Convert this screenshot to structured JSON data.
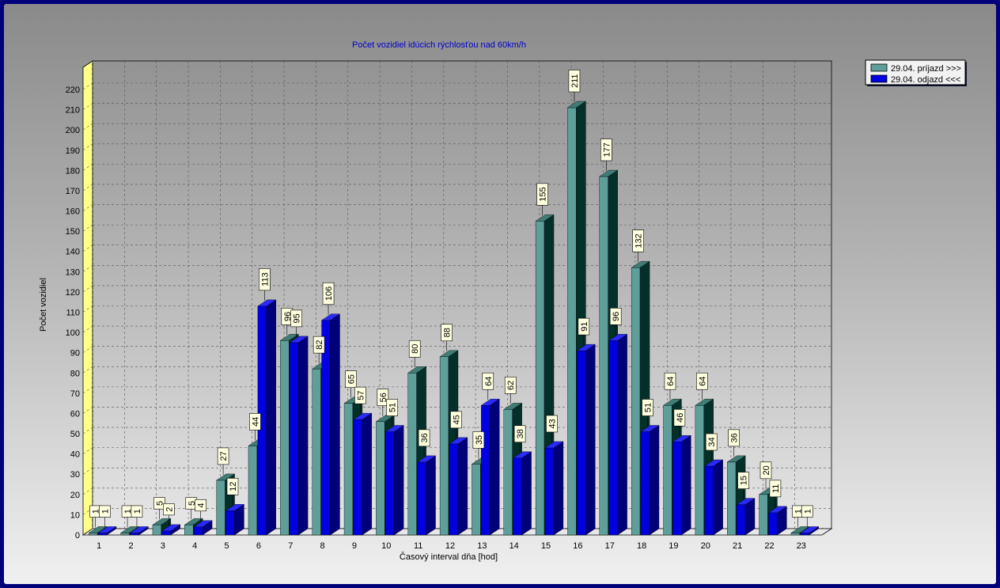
{
  "chart_data": {
    "type": "bar",
    "title": "Počet vozidiel idúcich rýchlosťou nad 60km/h",
    "xlabel": "Časový interval dňa [hod]",
    "ylabel": "Počet vozidiel",
    "ylim": [
      0,
      220
    ],
    "ytick_step": 10,
    "grid": true,
    "legend_position": "top-right",
    "categories": [
      "1",
      "2",
      "3",
      "4",
      "5",
      "6",
      "7",
      "8",
      "9",
      "10",
      "11",
      "12",
      "13",
      "14",
      "15",
      "16",
      "17",
      "18",
      "19",
      "20",
      "21",
      "22",
      "23"
    ],
    "series": [
      {
        "name": "29.04. príjazd >>>",
        "color": "#5f9f9a",
        "side_color": "#05302a",
        "top_color": "#3f7d76",
        "values": [
          1,
          1,
          5,
          5,
          27,
          44,
          96,
          82,
          65,
          56,
          80,
          88,
          35,
          62,
          155,
          211,
          177,
          132,
          64,
          64,
          36,
          20,
          1
        ]
      },
      {
        "name": "29.04. odjazd <<<",
        "color": "#0000e0",
        "side_color": "#00007a",
        "top_color": "#2a2aff",
        "values": [
          1,
          1,
          2,
          4,
          12,
          113,
          95,
          106,
          57,
          51,
          36,
          45,
          64,
          38,
          43,
          91,
          96,
          51,
          46,
          34,
          15,
          11,
          1
        ]
      }
    ],
    "data_labels": {
      "s0": [
        "1",
        "1",
        "5",
        "5",
        "27",
        "44",
        "96",
        "82",
        "65",
        "56",
        "80",
        "88",
        "35",
        "62",
        "155",
        "211",
        "177",
        "132",
        "64",
        "64",
        "36",
        "20",
        "1"
      ],
      "s1": [
        "1",
        "1",
        "2",
        "4",
        "12",
        "113",
        "95",
        "106",
        "57",
        "51",
        "36",
        "45",
        "64",
        "38",
        "43",
        "91",
        "96",
        "51",
        "46",
        "34",
        "15",
        "11",
        "1"
      ]
    }
  }
}
